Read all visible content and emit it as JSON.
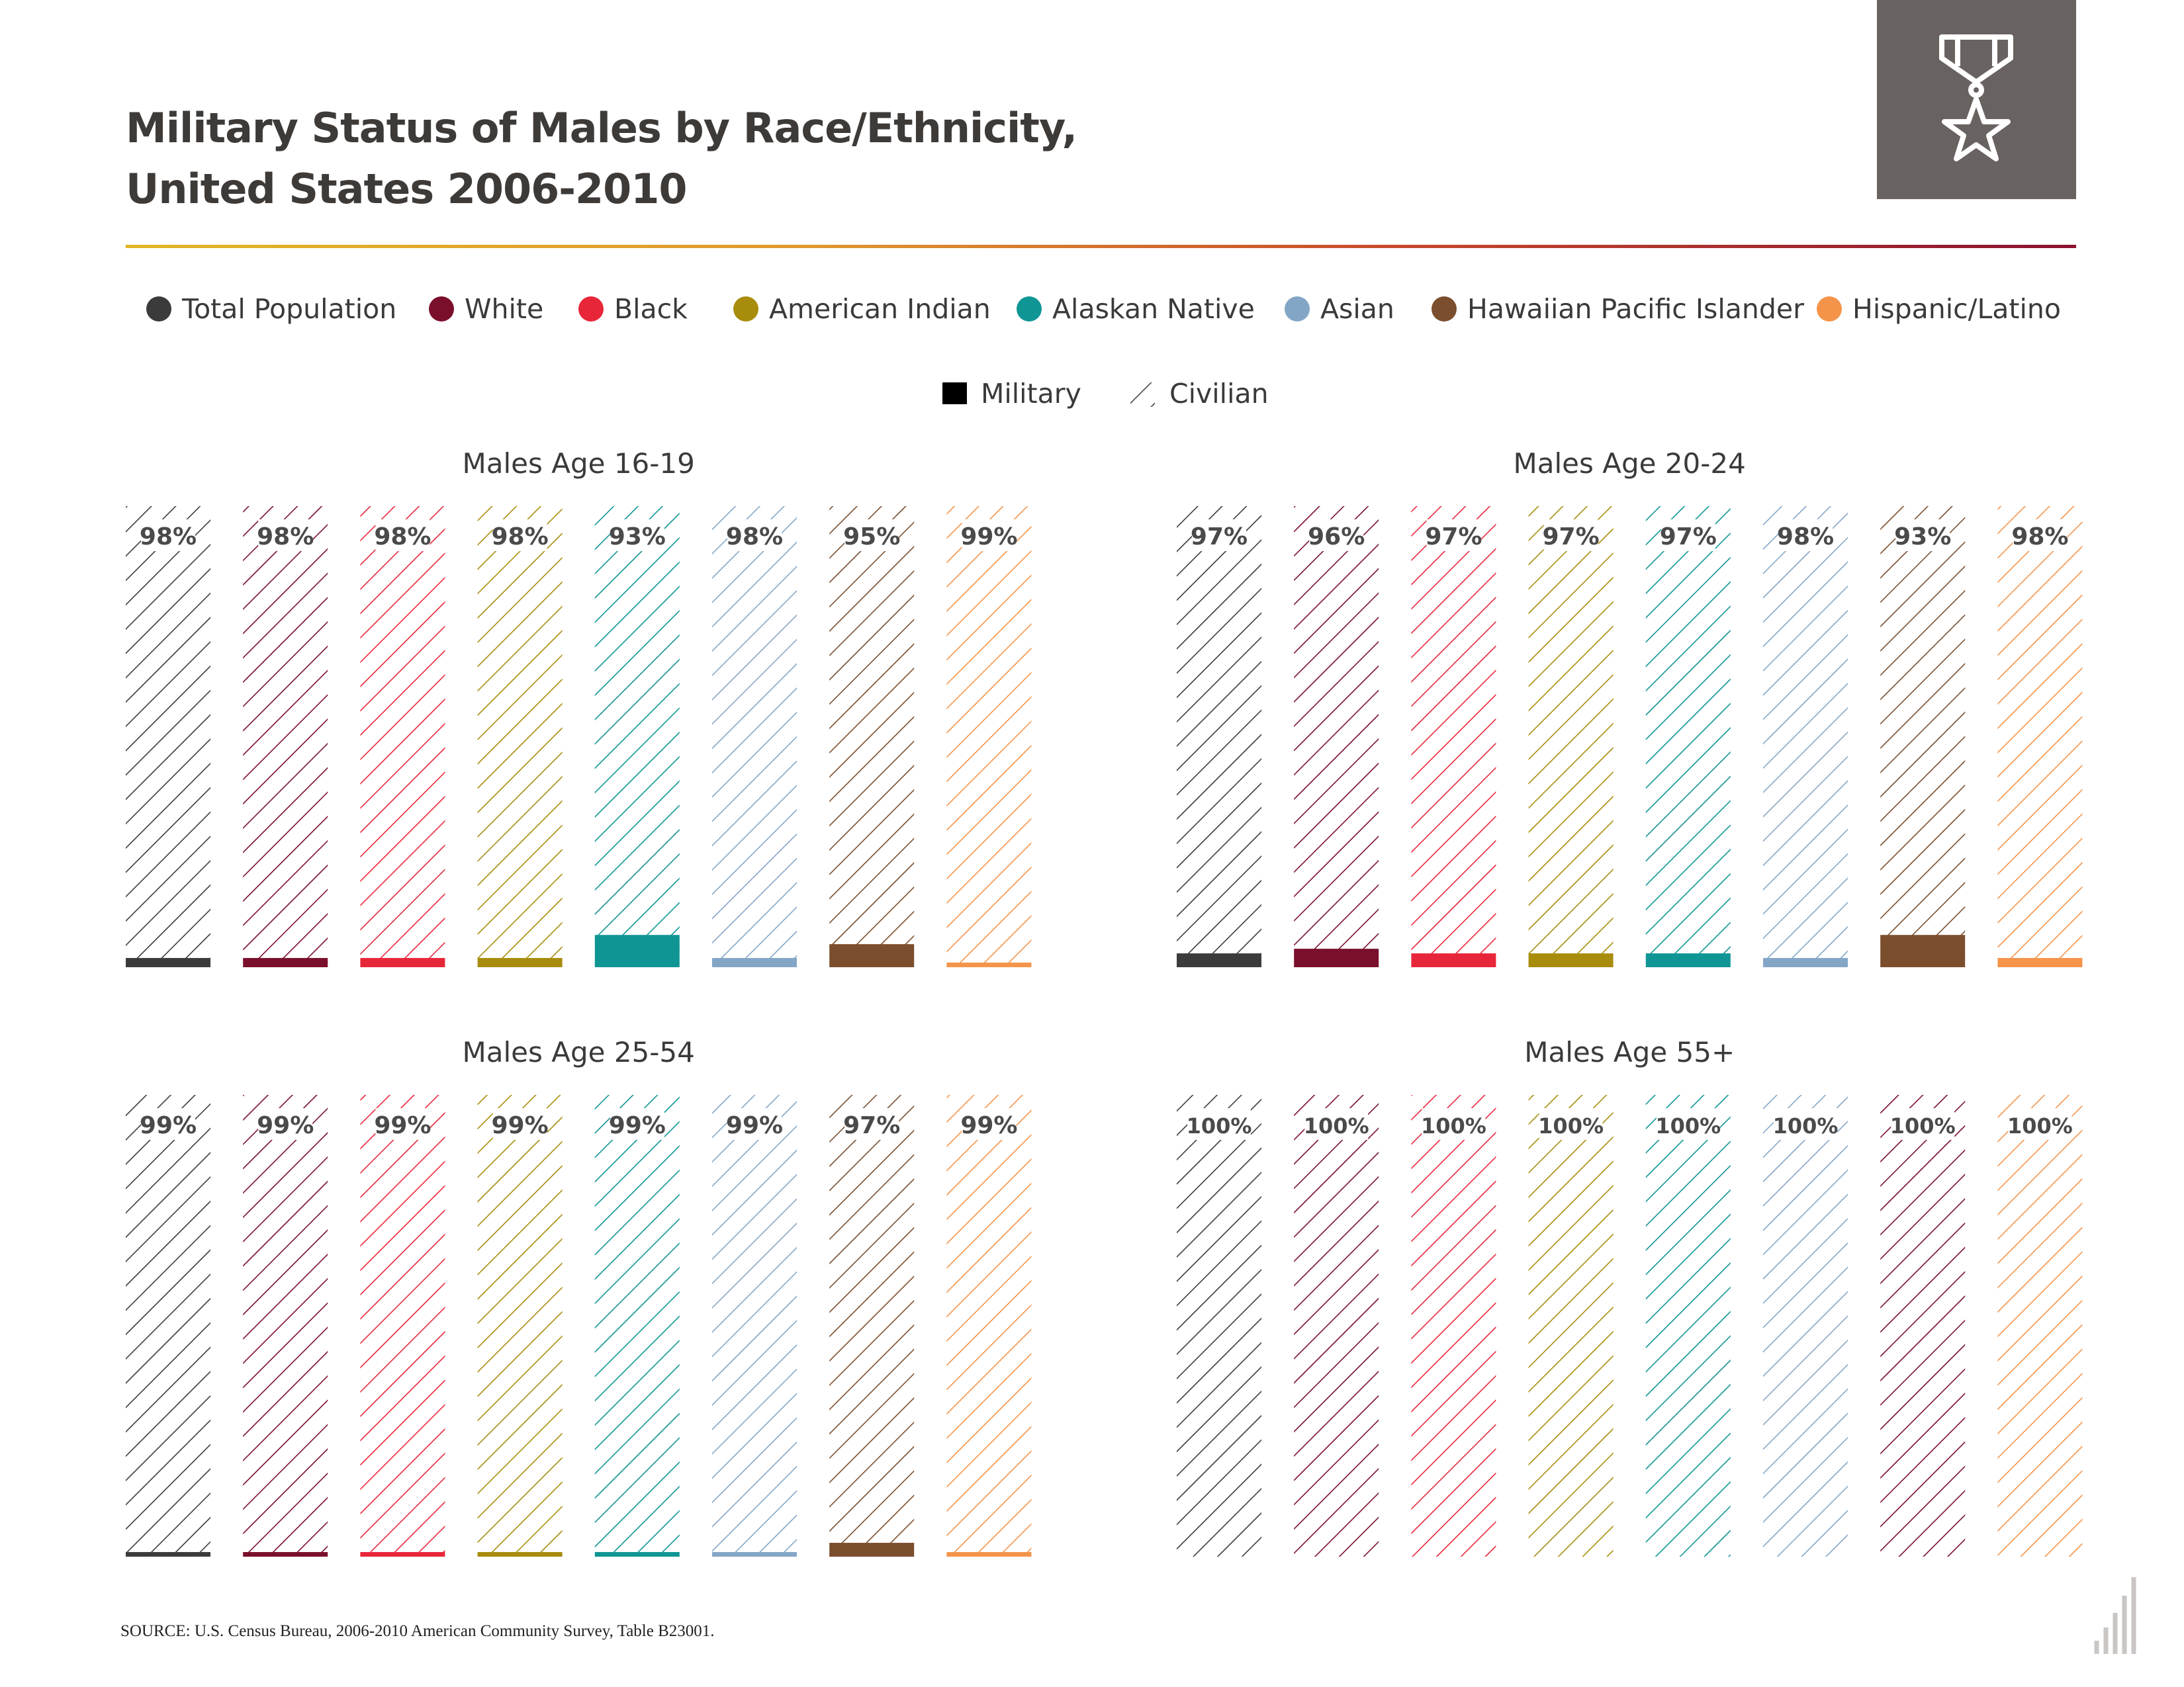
{
  "header": {
    "title_line1": "Military Status of Males by Race/Ethnicity,",
    "title_line2": "United States  2006-2010",
    "badge_icon": "medal-star-icon"
  },
  "colors": {
    "Total Population": "#3b3b3b",
    "White": "#7a0f2c",
    "Black": "#e8263a",
    "American Indian": "#a88c0c",
    "Alaskan Native": "#0f9594",
    "Asian": "#84a6c6",
    "Hawaiian Pacific Islander": "#7b4e2d",
    "Hispanic/Latino": "#f4944a"
  },
  "legend": {
    "groups": [
      "Total Population",
      "White",
      "Black",
      "American Indian",
      "Alaskan Native",
      "Asian",
      "Hawaiian Pacific Islander",
      "Hispanic/Latino"
    ],
    "status": [
      "Military",
      "Civilian"
    ]
  },
  "chart_data": [
    {
      "type": "bar",
      "stacked": true,
      "title": "Males Age 16-19",
      "categories": [
        "Total Population",
        "White",
        "Black",
        "American Indian",
        "Alaskan Native",
        "Asian",
        "Hawaiian Pacific Islander",
        "Hispanic/Latino"
      ],
      "series": [
        {
          "name": "Military",
          "values": [
            2,
            2,
            2,
            2,
            7,
            2,
            5,
            1
          ]
        },
        {
          "name": "Civilian",
          "values": [
            98,
            98,
            98,
            98,
            93,
            98,
            95,
            99
          ]
        }
      ],
      "labels": [
        "98%",
        "98%",
        "98%",
        "98%",
        "93%",
        "98%",
        "95%",
        "99%"
      ],
      "bar_colors": [
        "#3b3b3b",
        "#7a0f2c",
        "#e8263a",
        "#a88c0c",
        "#0f9594",
        "#84a6c6",
        "#7b4e2d",
        "#f4944a"
      ],
      "ylim": [
        0,
        100
      ]
    },
    {
      "type": "bar",
      "stacked": true,
      "title": "Males Age 20-24",
      "categories": [
        "Total Population",
        "White",
        "Black",
        "American Indian",
        "Alaskan Native",
        "Asian",
        "Hawaiian Pacific Islander",
        "Hispanic/Latino"
      ],
      "series": [
        {
          "name": "Military",
          "values": [
            3,
            4,
            3,
            3,
            3,
            2,
            7,
            2
          ]
        },
        {
          "name": "Civilian",
          "values": [
            97,
            96,
            97,
            97,
            97,
            98,
            93,
            98
          ]
        }
      ],
      "labels": [
        "97%",
        "96%",
        "97%",
        "97%",
        "97%",
        "98%",
        "93%",
        "98%"
      ],
      "bar_colors": [
        "#3b3b3b",
        "#7a0f2c",
        "#e8263a",
        "#a88c0c",
        "#0f9594",
        "#84a6c6",
        "#7b4e2d",
        "#f4944a"
      ],
      "ylim": [
        0,
        100
      ]
    },
    {
      "type": "bar",
      "stacked": true,
      "title": "Males Age 25-54",
      "categories": [
        "Total Population",
        "White",
        "Black",
        "American Indian",
        "Alaskan Native",
        "Asian",
        "Hawaiian Pacific Islander",
        "Hispanic/Latino"
      ],
      "series": [
        {
          "name": "Military",
          "values": [
            1,
            1,
            1,
            1,
            1,
            1,
            3,
            1
          ]
        },
        {
          "name": "Civilian",
          "values": [
            99,
            99,
            99,
            99,
            99,
            99,
            97,
            99
          ]
        }
      ],
      "labels": [
        "99%",
        "99%",
        "99%",
        "99%",
        "99%",
        "99%",
        "97%",
        "99%"
      ],
      "bar_colors": [
        "#3b3b3b",
        "#7a0f2c",
        "#e8263a",
        "#a88c0c",
        "#0f9594",
        "#84a6c6",
        "#7b4e2d",
        "#f4944a"
      ],
      "ylim": [
        0,
        100
      ]
    },
    {
      "type": "bar",
      "stacked": true,
      "title": "Males Age 55+",
      "categories": [
        "Total Population",
        "White",
        "Black",
        "American Indian",
        "Alaskan Native",
        "Asian",
        "Hawaiian Pacific Islander",
        "Hispanic/Latino"
      ],
      "series": [
        {
          "name": "Military",
          "values": [
            0,
            0,
            0,
            0,
            0,
            0,
            0,
            0
          ]
        },
        {
          "name": "Civilian",
          "values": [
            100,
            100,
            100,
            100,
            100,
            100,
            100,
            100
          ]
        }
      ],
      "labels": [
        "100%",
        "100%",
        "100%",
        "100%",
        "100%",
        "100%",
        "100%",
        "100%"
      ],
      "bar_colors": [
        "#3b3b3b",
        "#7a0f2c",
        "#e8263a",
        "#a88c0c",
        "#0f9594",
        "#84a6c6",
        "#7a0f2c",
        "#f4944a"
      ],
      "ylim": [
        0,
        100
      ]
    }
  ],
  "footer": {
    "source": "SOURCE: U.S. Census Bureau, 2006-2010 American Community Survey, Table B23001.",
    "logo_icon": "bar-steps-logo-icon"
  }
}
